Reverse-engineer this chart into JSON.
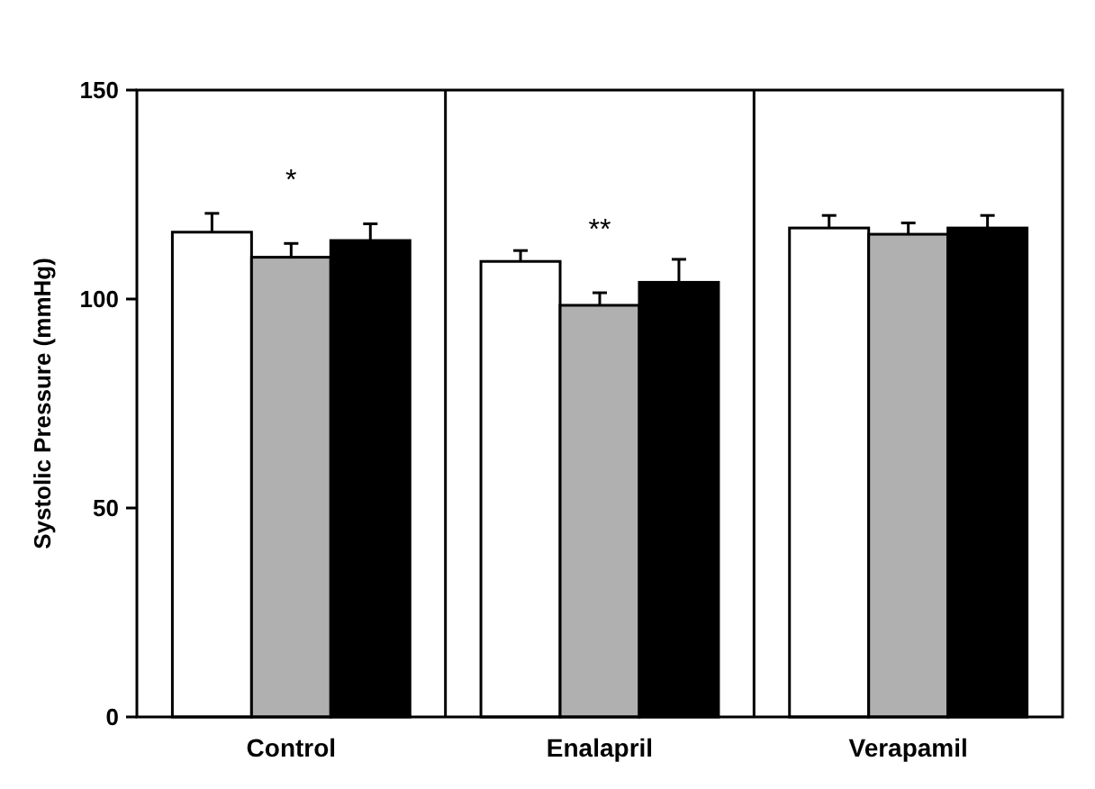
{
  "chart_data": {
    "type": "bar",
    "ylabel": "Systolic Pressure (mmHg)",
    "categories": [
      "Control",
      "Enalapril",
      "Verapamil"
    ],
    "series": [
      {
        "color": "#ffffff",
        "values": [
          116,
          109,
          117
        ],
        "errors": [
          4.5,
          2.6,
          3
        ]
      },
      {
        "color": "#b0b0b0",
        "values": [
          110,
          98.5,
          115.5
        ],
        "errors": [
          3.3,
          3,
          2.7
        ]
      },
      {
        "color": "#000000",
        "values": [
          114,
          104,
          117
        ],
        "errors": [
          4,
          5.5,
          3
        ]
      }
    ],
    "ylim": [
      0,
      150
    ],
    "yticks": [
      0,
      50,
      100,
      150
    ],
    "annotations": [
      "*",
      "**"
    ]
  }
}
